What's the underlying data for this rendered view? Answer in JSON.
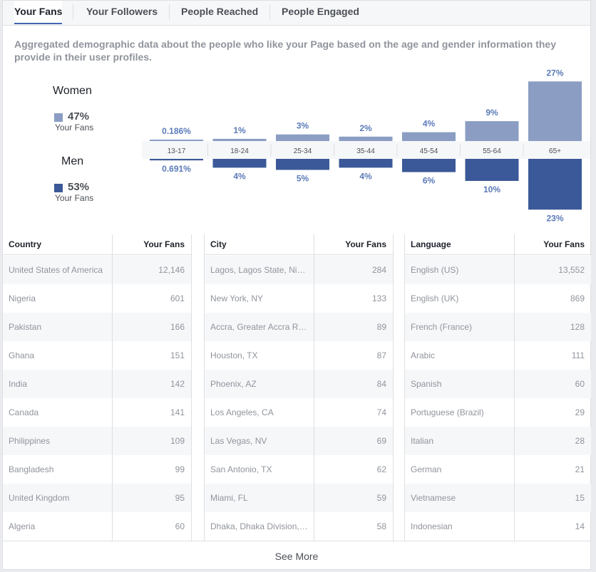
{
  "tabs": [
    {
      "label": "Your Fans",
      "active": true
    },
    {
      "label": "Your Followers",
      "active": false
    },
    {
      "label": "People Reached",
      "active": false
    },
    {
      "label": "People Engaged",
      "active": false
    }
  ],
  "description": "Aggregated demographic data about the people who like your Page based on the age and gender information they provide in their user profiles.",
  "gender": {
    "women": {
      "label": "Women",
      "pct": "47%",
      "sub": "Your Fans",
      "color": "#8b9dc3"
    },
    "men": {
      "label": "Men",
      "pct": "53%",
      "sub": "Your Fans",
      "color": "#3b5998"
    }
  },
  "chart_data": {
    "type": "bar",
    "categories": [
      "13-17",
      "18-24",
      "25-34",
      "35-44",
      "45-54",
      "55-64",
      "65+"
    ],
    "series": [
      {
        "name": "Women",
        "values": [
          0.186,
          1,
          3,
          2,
          4,
          9,
          27
        ],
        "labels": [
          "0.186%",
          "1%",
          "3%",
          "2%",
          "4%",
          "9%",
          "27%"
        ]
      },
      {
        "name": "Men",
        "values": [
          0.691,
          4,
          5,
          4,
          6,
          10,
          23
        ],
        "labels": [
          "0.691%",
          "4%",
          "5%",
          "4%",
          "6%",
          "10%",
          "23%"
        ]
      }
    ]
  },
  "tables": [
    {
      "col1": "Country",
      "col2": "Your Fans",
      "rows": [
        [
          "United States of America",
          "12,146"
        ],
        [
          "Nigeria",
          "601"
        ],
        [
          "Pakistan",
          "166"
        ],
        [
          "Ghana",
          "151"
        ],
        [
          "India",
          "142"
        ],
        [
          "Canada",
          "141"
        ],
        [
          "Philippines",
          "109"
        ],
        [
          "Bangladesh",
          "99"
        ],
        [
          "United Kingdom",
          "95"
        ],
        [
          "Algeria",
          "60"
        ]
      ]
    },
    {
      "col1": "City",
      "col2": "Your Fans",
      "rows": [
        [
          "Lagos, Lagos State, Ni…",
          "284"
        ],
        [
          "New York, NY",
          "133"
        ],
        [
          "Accra, Greater Accra R…",
          "89"
        ],
        [
          "Houston, TX",
          "87"
        ],
        [
          "Phoenix, AZ",
          "84"
        ],
        [
          "Los Angeles, CA",
          "74"
        ],
        [
          "Las Vegas, NV",
          "69"
        ],
        [
          "San Antonio, TX",
          "62"
        ],
        [
          "Miami, FL",
          "59"
        ],
        [
          "Dhaka, Dhaka Division,…",
          "58"
        ]
      ]
    },
    {
      "col1": "Language",
      "col2": "Your Fans",
      "rows": [
        [
          "English (US)",
          "13,552"
        ],
        [
          "English (UK)",
          "869"
        ],
        [
          "French (France)",
          "128"
        ],
        [
          "Arabic",
          "111"
        ],
        [
          "Spanish",
          "60"
        ],
        [
          "Portuguese (Brazil)",
          "29"
        ],
        [
          "Italian",
          "28"
        ],
        [
          "German",
          "21"
        ],
        [
          "Vietnamese",
          "15"
        ],
        [
          "Indonesian",
          "14"
        ]
      ]
    }
  ],
  "footer": {
    "see_more": "See More"
  }
}
